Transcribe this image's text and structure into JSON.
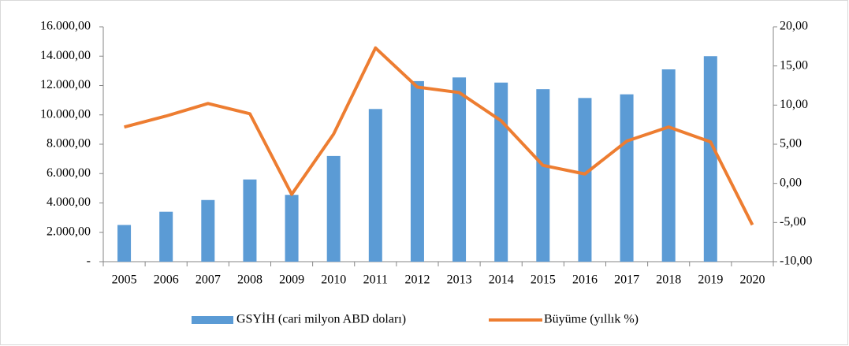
{
  "chart_data": {
    "type": "bar_line",
    "categories": [
      "2005",
      "2006",
      "2007",
      "2008",
      "2009",
      "2010",
      "2011",
      "2012",
      "2013",
      "2014",
      "2015",
      "2016",
      "2017",
      "2018",
      "2019",
      "2020"
    ],
    "series": [
      {
        "name": "GSYİH (cari milyon ABD doları)",
        "color": "#5b9bd5",
        "type": "bar",
        "values": [
          2500,
          3400,
          4200,
          5600,
          4550,
          7200,
          10400,
          12300,
          12550,
          12200,
          11750,
          11150,
          11400,
          13100,
          14000,
          null
        ]
      },
      {
        "name": "Büyüme (yıllık %)",
        "color": "#ed7d31",
        "type": "line",
        "axis": "y2",
        "values": [
          7.2,
          8.6,
          10.2,
          8.9,
          -1.4,
          6.3,
          17.3,
          12.3,
          11.6,
          8.0,
          2.3,
          1.2,
          5.4,
          7.2,
          5.3,
          -5.3
        ]
      }
    ],
    "ylim": [
      0,
      16000
    ],
    "yticks": [
      {
        "value": 0,
        "label": "-"
      },
      {
        "value": 2000,
        "label": "2.000,00"
      },
      {
        "value": 4000,
        "label": "4.000,00"
      },
      {
        "value": 6000,
        "label": "6.000,00"
      },
      {
        "value": 8000,
        "label": "8.000,00"
      },
      {
        "value": 10000,
        "label": "10.000,00"
      },
      {
        "value": 12000,
        "label": "12.000,00"
      },
      {
        "value": 14000,
        "label": "14.000,00"
      },
      {
        "value": 16000,
        "label": "16.000,00"
      }
    ],
    "y2lim": [
      -10,
      20
    ],
    "y2ticks": [
      {
        "value": -10,
        "label": "-10,00"
      },
      {
        "value": -5,
        "label": "-5,00"
      },
      {
        "value": 0,
        "label": "0,00"
      },
      {
        "value": 5,
        "label": "5,00"
      },
      {
        "value": 10,
        "label": "10,00"
      },
      {
        "value": 15,
        "label": "15,00"
      },
      {
        "value": 20,
        "label": "20,00"
      }
    ],
    "legend": "bottom"
  }
}
